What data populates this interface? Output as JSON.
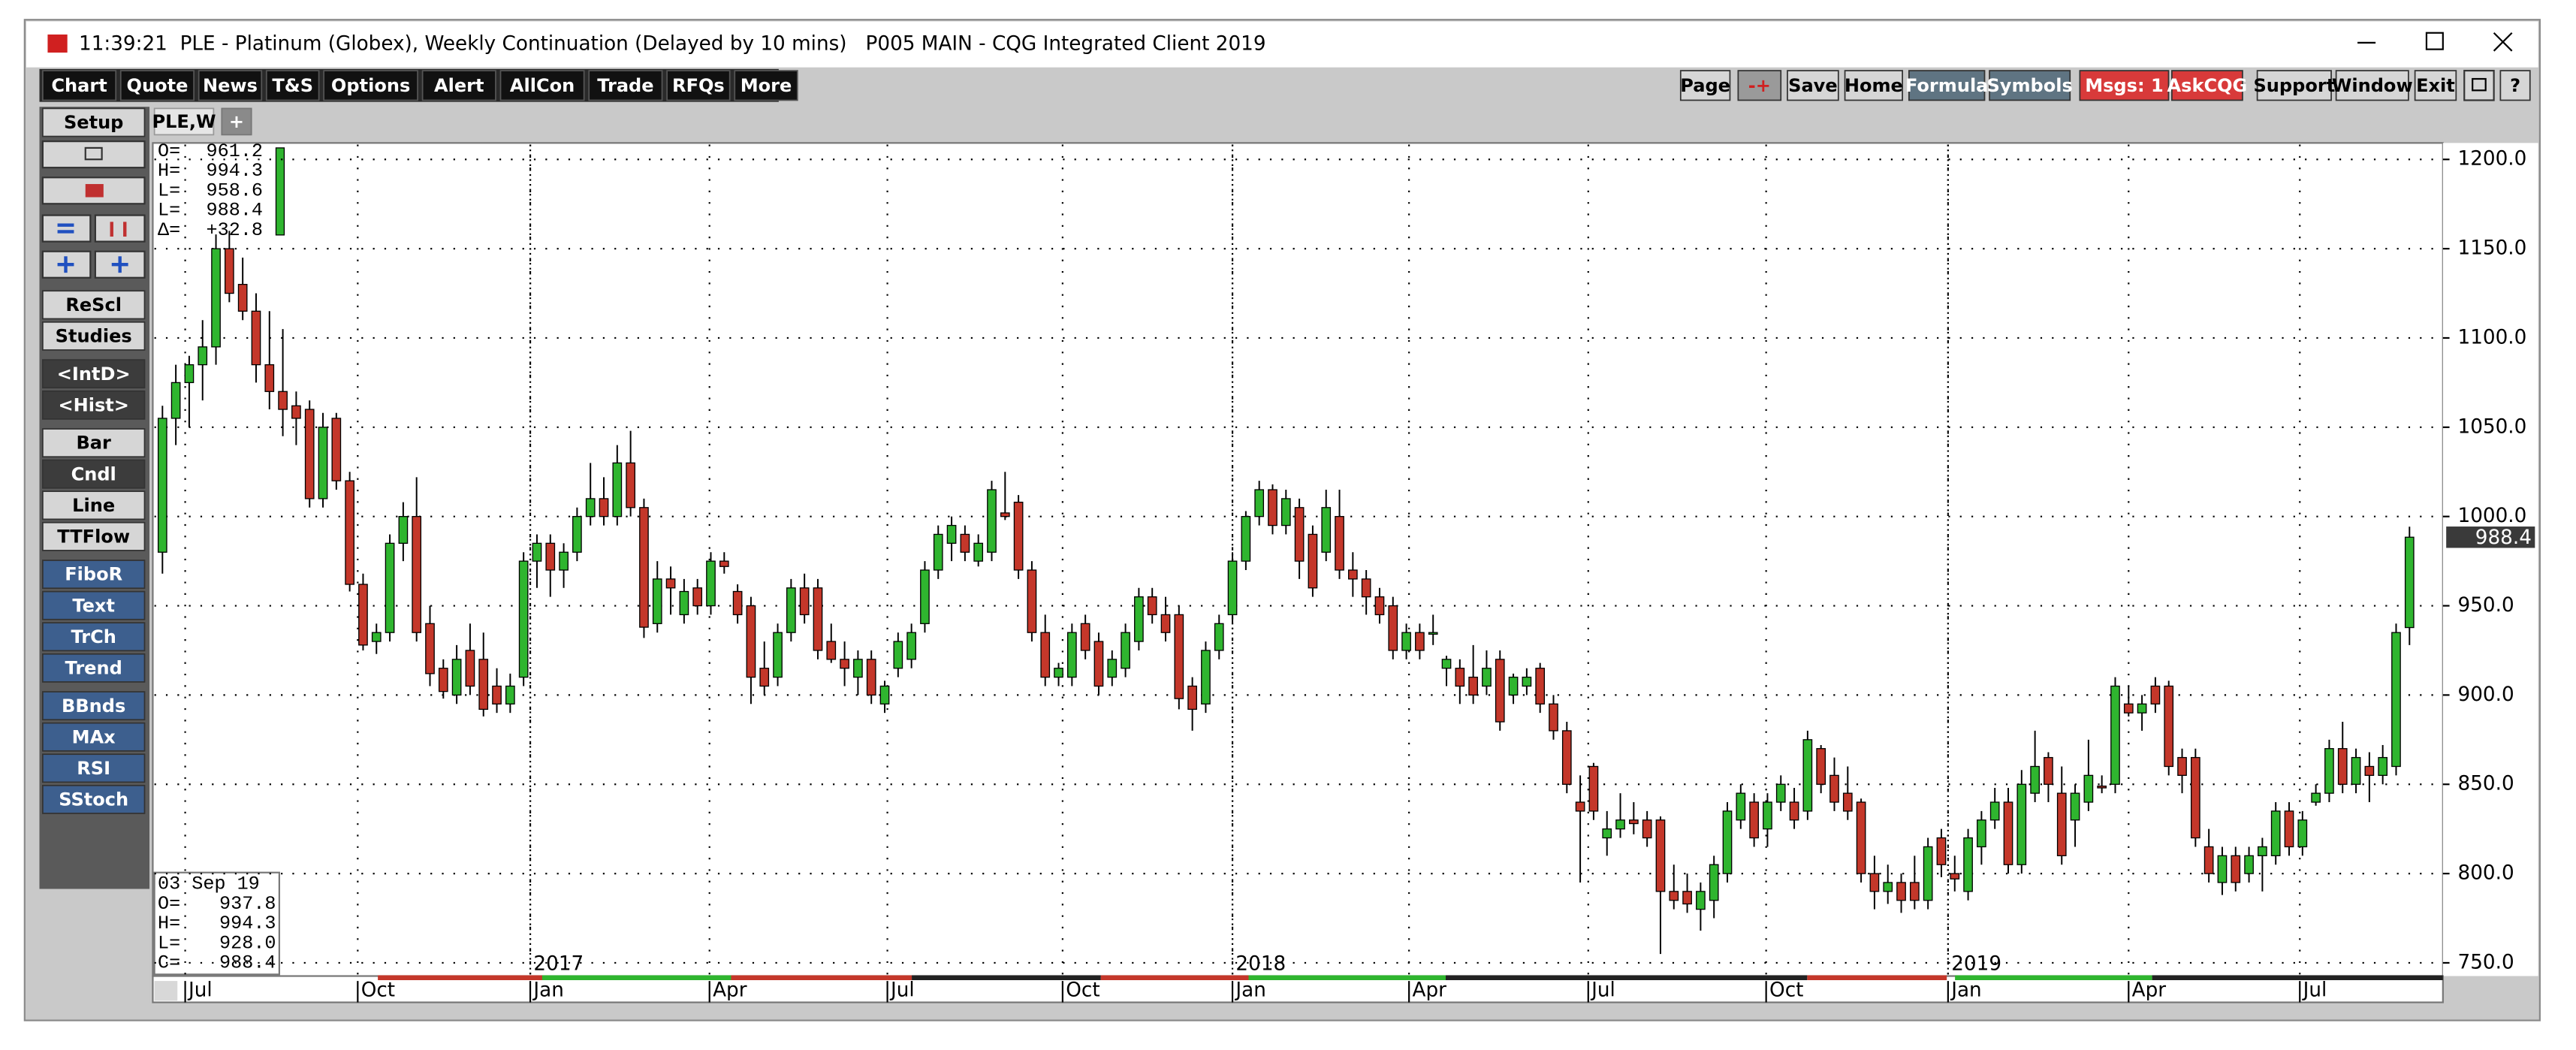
{
  "window": {
    "title": "11:39:21  PLE - Platinum (Globex), Weekly Continuation (Delayed by 10 mins)   P005 MAIN - CQG Integrated Client 2019"
  },
  "menu": [
    "Chart",
    "Quote",
    "News",
    "T&S",
    "Options",
    "Alert",
    "AllCon",
    "Trade",
    "RFQs",
    "More"
  ],
  "right_menu": [
    "Page",
    "-+",
    "Save",
    "Home",
    "Formula",
    "Symbols",
    "Msgs: 1",
    "AskCQG",
    "Support",
    "Window",
    "Exit",
    "?"
  ],
  "sidebar": [
    "Setup",
    "ReScl",
    "Studies",
    "<IntD>",
    "<Hist>",
    "Bar",
    "Cndl",
    "Line",
    "TTFlow",
    "FiboR",
    "Text",
    "TrCh",
    "Trend",
    "BBnds",
    "MAx",
    "RSI",
    "SStoch"
  ],
  "tabs": [
    "PLE,W",
    "+"
  ],
  "info_top": [
    [
      "O=",
      "961.2"
    ],
    [
      "H=",
      "994.3"
    ],
    [
      "L=",
      "958.6"
    ],
    [
      "L=",
      "988.4"
    ],
    [
      "Δ=",
      "+32.8"
    ]
  ],
  "info_bottom": {
    "date": "03 Sep 19",
    "rows": [
      [
        "O=",
        "937.8"
      ],
      [
        "H=",
        "994.3"
      ],
      [
        "L=",
        "928.0"
      ],
      [
        "C=",
        "988.4"
      ]
    ]
  },
  "chart_data": {
    "type": "candlestick",
    "up_color": "#2fb52f",
    "down_color": "#c4372a",
    "grid": true,
    "last_price": 988.4,
    "xlim": [
      -0.6,
      170.5
    ],
    "ylim": [
      742.6,
      1208.3
    ],
    "yticks": [
      {
        "value": 750,
        "label": "750.0"
      },
      {
        "value": 800,
        "label": "800.0"
      },
      {
        "value": 850,
        "label": "850.0"
      },
      {
        "value": 900,
        "label": "900.0"
      },
      {
        "value": 950,
        "label": "950.0"
      },
      {
        "value": 1000,
        "label": "1000.0"
      },
      {
        "value": 1050,
        "label": "1050.0"
      },
      {
        "value": 1100,
        "label": "1100.0"
      },
      {
        "value": 1150,
        "label": "1150.0"
      },
      {
        "value": 1200,
        "label": "1200.0"
      }
    ],
    "xticks": [
      {
        "value": 1.7,
        "label": "Jul"
      },
      {
        "value": 14.6,
        "label": "Oct"
      },
      {
        "value": 27.5,
        "label": "Jan"
      },
      {
        "value": 40.9,
        "label": "Apr"
      },
      {
        "value": 54.2,
        "label": "Jul"
      },
      {
        "value": 67.3,
        "label": "Oct"
      },
      {
        "value": 80,
        "label": "Jan"
      },
      {
        "value": 93.2,
        "label": "Apr"
      },
      {
        "value": 106.6,
        "label": "Jul"
      },
      {
        "value": 119.9,
        "label": "Oct"
      },
      {
        "value": 133.5,
        "label": "Jan"
      },
      {
        "value": 147,
        "label": "Apr"
      },
      {
        "value": 159.8,
        "label": "Jul"
      }
    ],
    "year_ticks": [
      {
        "value": 27.5,
        "label": "2017"
      },
      {
        "value": 80,
        "label": "2018"
      },
      {
        "value": 133.5,
        "label": "2019"
      }
    ],
    "ohlc": [
      [
        980,
        1062,
        968,
        1055
      ],
      [
        1055,
        1085,
        1040,
        1075
      ],
      [
        1075,
        1090,
        1050,
        1085
      ],
      [
        1085,
        1110,
        1065,
        1095
      ],
      [
        1095,
        1158,
        1085,
        1150
      ],
      [
        1150,
        1160,
        1120,
        1125
      ],
      [
        1130,
        1145,
        1110,
        1115
      ],
      [
        1115,
        1125,
        1075,
        1085
      ],
      [
        1085,
        1115,
        1060,
        1070
      ],
      [
        1070,
        1105,
        1045,
        1060
      ],
      [
        1062,
        1070,
        1040,
        1055
      ],
      [
        1060,
        1065,
        1005,
        1010
      ],
      [
        1010,
        1058,
        1005,
        1050
      ],
      [
        1055,
        1058,
        1015,
        1020
      ],
      [
        1020,
        1025,
        958,
        962
      ],
      [
        962,
        968,
        925,
        928
      ],
      [
        930,
        940,
        923,
        935
      ],
      [
        935,
        990,
        930,
        985
      ],
      [
        985,
        1008,
        975,
        1000
      ],
      [
        1000,
        1022,
        930,
        935
      ],
      [
        940,
        950,
        905,
        912
      ],
      [
        915,
        920,
        898,
        902
      ],
      [
        900,
        928,
        895,
        920
      ],
      [
        925,
        940,
        900,
        905
      ],
      [
        920,
        935,
        888,
        892
      ],
      [
        905,
        915,
        890,
        895
      ],
      [
        895,
        912,
        890,
        905
      ],
      [
        910,
        980,
        905,
        975
      ],
      [
        975,
        990,
        960,
        985
      ],
      [
        985,
        990,
        955,
        970
      ],
      [
        970,
        985,
        960,
        980
      ],
      [
        980,
        1005,
        975,
        1000
      ],
      [
        1000,
        1030,
        995,
        1010
      ],
      [
        1010,
        1022,
        995,
        1000
      ],
      [
        1000,
        1040,
        995,
        1030
      ],
      [
        1030,
        1048,
        1000,
        1005
      ],
      [
        1005,
        1010,
        932,
        938
      ],
      [
        940,
        975,
        935,
        965
      ],
      [
        965,
        972,
        945,
        960
      ],
      [
        945,
        965,
        940,
        958
      ],
      [
        960,
        965,
        945,
        950
      ],
      [
        950,
        980,
        945,
        975
      ],
      [
        975,
        980,
        968,
        972
      ],
      [
        958,
        962,
        940,
        945
      ],
      [
        950,
        955,
        895,
        910
      ],
      [
        915,
        930,
        900,
        905
      ],
      [
        910,
        940,
        905,
        935
      ],
      [
        935,
        965,
        930,
        960
      ],
      [
        960,
        968,
        940,
        945
      ],
      [
        960,
        965,
        920,
        925
      ],
      [
        930,
        940,
        918,
        920
      ],
      [
        920,
        930,
        905,
        915
      ],
      [
        910,
        925,
        900,
        920
      ],
      [
        920,
        925,
        895,
        900
      ],
      [
        895,
        908,
        890,
        905
      ],
      [
        915,
        935,
        910,
        930
      ],
      [
        920,
        940,
        915,
        935
      ],
      [
        940,
        975,
        935,
        970
      ],
      [
        970,
        995,
        965,
        990
      ],
      [
        985,
        1000,
        975,
        995
      ],
      [
        990,
        995,
        975,
        980
      ],
      [
        975,
        990,
        972,
        985
      ],
      [
        980,
        1020,
        975,
        1015
      ],
      [
        1002,
        1025,
        998,
        1000
      ],
      [
        1008,
        1012,
        965,
        970
      ],
      [
        970,
        975,
        930,
        935
      ],
      [
        935,
        945,
        905,
        910
      ],
      [
        910,
        918,
        905,
        915
      ],
      [
        910,
        940,
        905,
        935
      ],
      [
        940,
        945,
        920,
        925
      ],
      [
        930,
        935,
        900,
        905
      ],
      [
        910,
        925,
        905,
        920
      ],
      [
        915,
        940,
        910,
        935
      ],
      [
        930,
        960,
        925,
        955
      ],
      [
        955,
        960,
        940,
        945
      ],
      [
        945,
        955,
        930,
        935
      ],
      [
        945,
        950,
        892,
        898
      ],
      [
        905,
        910,
        880,
        892
      ],
      [
        895,
        930,
        890,
        925
      ],
      [
        925,
        945,
        920,
        940
      ],
      [
        945,
        980,
        940,
        975
      ],
      [
        975,
        1003,
        970,
        1000
      ],
      [
        1000,
        1020,
        995,
        1015
      ],
      [
        1015,
        1018,
        990,
        995
      ],
      [
        995,
        1015,
        990,
        1010
      ],
      [
        1005,
        1010,
        965,
        975
      ],
      [
        990,
        995,
        955,
        960
      ],
      [
        980,
        1015,
        975,
        1005
      ],
      [
        1000,
        1015,
        965,
        970
      ],
      [
        970,
        980,
        955,
        965
      ],
      [
        965,
        970,
        945,
        955
      ],
      [
        955,
        960,
        940,
        945
      ],
      [
        950,
        955,
        920,
        925
      ],
      [
        925,
        940,
        920,
        935
      ],
      [
        935,
        940,
        920,
        925
      ],
      [
        935,
        945,
        928,
        935
      ],
      [
        915,
        922,
        905,
        920
      ],
      [
        915,
        920,
        895,
        905
      ],
      [
        910,
        928,
        895,
        900
      ],
      [
        905,
        925,
        900,
        915
      ],
      [
        920,
        925,
        880,
        885
      ],
      [
        900,
        912,
        895,
        910
      ],
      [
        905,
        915,
        900,
        910
      ],
      [
        915,
        918,
        890,
        895
      ],
      [
        895,
        900,
        875,
        880
      ],
      [
        880,
        885,
        845,
        850
      ],
      [
        840,
        855,
        795,
        835
      ],
      [
        860,
        862,
        830,
        835
      ],
      [
        820,
        835,
        810,
        825
      ],
      [
        825,
        845,
        820,
        830
      ],
      [
        830,
        840,
        822,
        828
      ],
      [
        830,
        835,
        815,
        820
      ],
      [
        830,
        832,
        755,
        790
      ],
      [
        790,
        805,
        780,
        785
      ],
      [
        790,
        800,
        778,
        783
      ],
      [
        780,
        795,
        768,
        790
      ],
      [
        785,
        810,
        775,
        805
      ],
      [
        800,
        840,
        795,
        835
      ],
      [
        830,
        850,
        825,
        845
      ],
      [
        840,
        845,
        815,
        820
      ],
      [
        825,
        845,
        815,
        840
      ],
      [
        840,
        855,
        835,
        850
      ],
      [
        840,
        848,
        825,
        830
      ],
      [
        835,
        880,
        830,
        875
      ],
      [
        870,
        872,
        845,
        850
      ],
      [
        855,
        865,
        835,
        840
      ],
      [
        845,
        860,
        830,
        835
      ],
      [
        840,
        842,
        795,
        800
      ],
      [
        800,
        810,
        780,
        790
      ],
      [
        790,
        805,
        783,
        795
      ],
      [
        795,
        800,
        778,
        785
      ],
      [
        795,
        810,
        780,
        785
      ],
      [
        785,
        820,
        780,
        815
      ],
      [
        820,
        825,
        798,
        805
      ],
      [
        800,
        810,
        790,
        797
      ],
      [
        790,
        825,
        785,
        820
      ],
      [
        815,
        835,
        805,
        830
      ],
      [
        830,
        848,
        825,
        840
      ],
      [
        840,
        848,
        800,
        805
      ],
      [
        805,
        858,
        800,
        850
      ],
      [
        845,
        880,
        840,
        860
      ],
      [
        865,
        868,
        840,
        850
      ],
      [
        845,
        860,
        805,
        810
      ],
      [
        830,
        850,
        815,
        845
      ],
      [
        840,
        875,
        835,
        855
      ],
      [
        849,
        855,
        845,
        848
      ],
      [
        850,
        910,
        845,
        905
      ],
      [
        895,
        905,
        888,
        890
      ],
      [
        890,
        900,
        880,
        895
      ],
      [
        905,
        910,
        890,
        895
      ],
      [
        905,
        908,
        855,
        860
      ],
      [
        865,
        870,
        845,
        855
      ],
      [
        865,
        870,
        815,
        820
      ],
      [
        815,
        825,
        795,
        800
      ],
      [
        795,
        815,
        788,
        810
      ],
      [
        810,
        815,
        790,
        795
      ],
      [
        800,
        815,
        795,
        810
      ],
      [
        810,
        820,
        790,
        815
      ],
      [
        810,
        840,
        805,
        835
      ],
      [
        835,
        840,
        810,
        815
      ],
      [
        815,
        835,
        810,
        830
      ],
      [
        840,
        850,
        838,
        845
      ],
      [
        845,
        875,
        840,
        870
      ],
      [
        870,
        885,
        845,
        850
      ],
      [
        850,
        870,
        845,
        865
      ],
      [
        860,
        868,
        840,
        855
      ],
      [
        855,
        872,
        850,
        865
      ],
      [
        860,
        940,
        855,
        935
      ],
      [
        937.8,
        994.3,
        928.0,
        988.4
      ]
    ]
  }
}
